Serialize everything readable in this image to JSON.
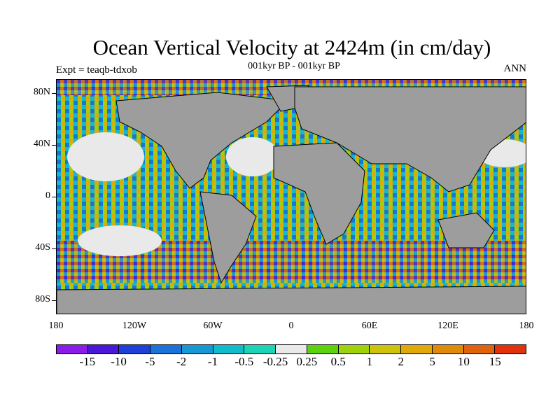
{
  "title": "Ocean Vertical Velocity at 2424m (in cm/day)",
  "subtitle": "001kyr BP - 001kyr BP",
  "expt": "Expt = teaqb-tdxob",
  "season": "ANN",
  "y_labels": [
    "80N",
    "40N",
    "0",
    "40S",
    "80S"
  ],
  "x_labels": [
    "180",
    "120W",
    "60W",
    "0",
    "60E",
    "120E",
    "180"
  ],
  "colorbar": {
    "colors": [
      "#8a1de8",
      "#4a18d8",
      "#1f3fd9",
      "#1b73d9",
      "#1598d4",
      "#10bccb",
      "#1cd3b6",
      "#e9e9e9",
      "#5ed10d",
      "#9dd20c",
      "#cfc20a",
      "#e0a80a",
      "#e08a0a",
      "#e0620c",
      "#e0320c"
    ],
    "labels": [
      "-15",
      "-10",
      "-5",
      "-2",
      "-1",
      "-0.5",
      "-0.25",
      "0.25",
      "0.5",
      "1",
      "2",
      "5",
      "10",
      "15"
    ]
  },
  "land_color": "#9d9d9d"
}
